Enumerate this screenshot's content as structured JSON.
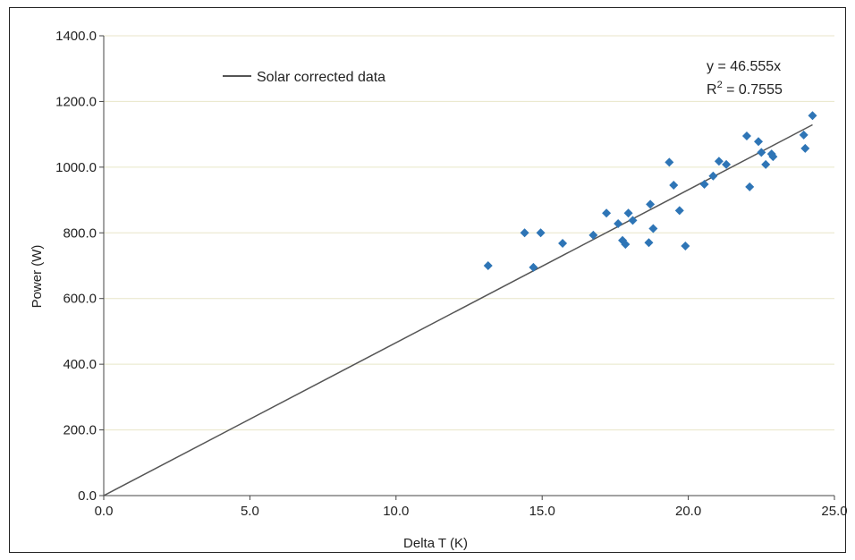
{
  "chart_data": {
    "type": "scatter",
    "xlabel": "Delta T (K)",
    "ylabel": "Power (W)",
    "xlim": [
      0,
      25
    ],
    "ylim": [
      0,
      1400
    ],
    "x_ticks": [
      "0.0",
      "5.0",
      "10.0",
      "15.0",
      "20.0",
      "25.0"
    ],
    "y_ticks": [
      "0.0",
      "200.0",
      "400.0",
      "600.0",
      "800.0",
      "1000.0",
      "1200.0",
      "1400.0"
    ],
    "grid": "horizontal",
    "marker_color": "#2e75b6",
    "trendline_color": "#555555",
    "gridline_color": "#e8e6c8",
    "legend": {
      "label": "Solar corrected data",
      "placement": "top-left"
    },
    "trendline": {
      "slope": 46.555,
      "equation": "y = 46.555x",
      "r2_prefix": "R",
      "r2_sup": "2",
      "r2_value": " = 0.7555"
    },
    "points": [
      {
        "x": 13.15,
        "y": 700
      },
      {
        "x": 14.4,
        "y": 800
      },
      {
        "x": 14.7,
        "y": 695
      },
      {
        "x": 14.95,
        "y": 800
      },
      {
        "x": 15.7,
        "y": 768
      },
      {
        "x": 16.75,
        "y": 793
      },
      {
        "x": 17.2,
        "y": 860
      },
      {
        "x": 17.6,
        "y": 828
      },
      {
        "x": 17.75,
        "y": 777
      },
      {
        "x": 17.85,
        "y": 765
      },
      {
        "x": 17.95,
        "y": 860
      },
      {
        "x": 18.1,
        "y": 838
      },
      {
        "x": 18.65,
        "y": 770
      },
      {
        "x": 18.7,
        "y": 887
      },
      {
        "x": 18.8,
        "y": 813
      },
      {
        "x": 19.35,
        "y": 1015
      },
      {
        "x": 19.5,
        "y": 945
      },
      {
        "x": 19.7,
        "y": 868
      },
      {
        "x": 19.9,
        "y": 760
      },
      {
        "x": 20.55,
        "y": 948
      },
      {
        "x": 20.85,
        "y": 973
      },
      {
        "x": 21.05,
        "y": 1018
      },
      {
        "x": 21.3,
        "y": 1008
      },
      {
        "x": 22.0,
        "y": 1095
      },
      {
        "x": 22.1,
        "y": 940
      },
      {
        "x": 22.4,
        "y": 1078
      },
      {
        "x": 22.5,
        "y": 1045
      },
      {
        "x": 22.65,
        "y": 1008
      },
      {
        "x": 22.85,
        "y": 1040
      },
      {
        "x": 22.9,
        "y": 1032
      },
      {
        "x": 23.95,
        "y": 1098
      },
      {
        "x": 24.0,
        "y": 1057
      },
      {
        "x": 24.25,
        "y": 1157
      }
    ]
  }
}
